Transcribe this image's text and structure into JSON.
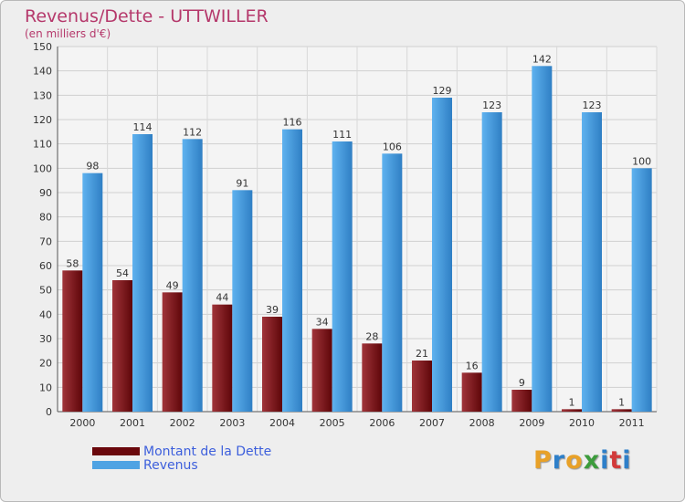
{
  "header": {
    "title": "Revenus/Dette - UTTWILLER",
    "subtitle": "(en milliers d'€)"
  },
  "logo": {
    "text": "Proxiti",
    "letters": [
      "P",
      "r",
      "o",
      "x",
      "i",
      "t",
      "i"
    ],
    "colors": [
      "#e8a128",
      "#2e7fc9",
      "#e8a128",
      "#3c9c3c",
      "#2e7fc9",
      "#d23a3a",
      "#2e7fc9"
    ]
  },
  "chart_data": {
    "type": "bar",
    "title": "Revenus/Dette - UTTWILLER",
    "subtitle": "(en milliers d'€)",
    "categories": [
      "2000",
      "2001",
      "2002",
      "2003",
      "2004",
      "2005",
      "2006",
      "2007",
      "2008",
      "2009",
      "2010",
      "2011"
    ],
    "series": [
      {
        "name": "Montant de la Dette",
        "values": [
          58,
          54,
          49,
          44,
          39,
          34,
          28,
          21,
          16,
          9,
          1,
          1
        ],
        "color": "#7b0e12"
      },
      {
        "name": "Revenus",
        "values": [
          98,
          114,
          112,
          91,
          116,
          111,
          106,
          129,
          123,
          142,
          123,
          100
        ],
        "color": "#4fa3e3"
      }
    ],
    "ylim": [
      0,
      150
    ],
    "yticks": [
      0,
      10,
      20,
      30,
      40,
      50,
      60,
      70,
      80,
      90,
      100,
      110,
      120,
      130,
      140,
      150
    ],
    "grid": true,
    "legend": "bottom-left",
    "xlabel": "",
    "ylabel": ""
  }
}
